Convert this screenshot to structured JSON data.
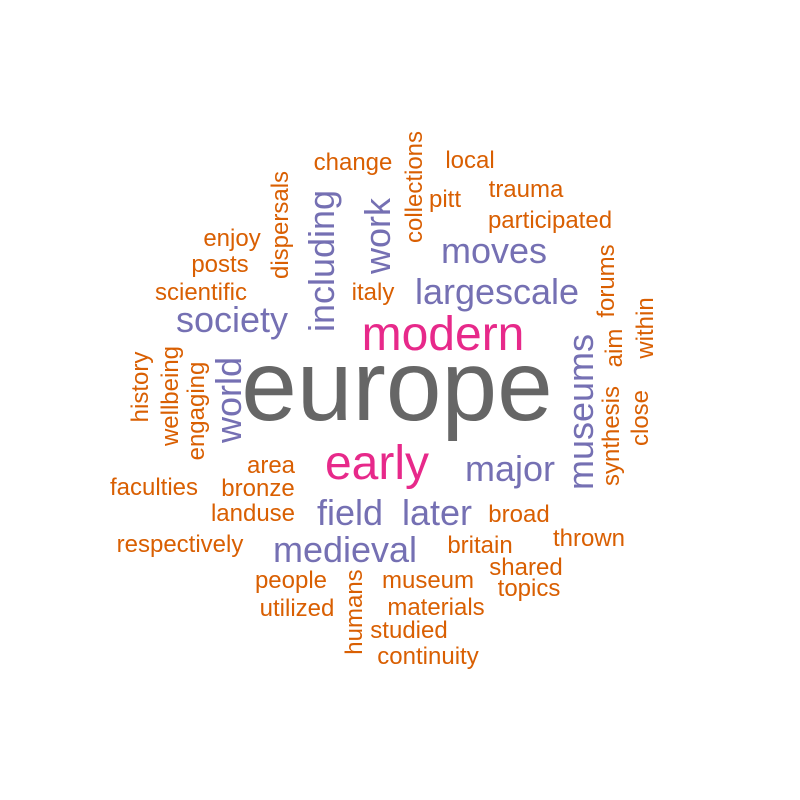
{
  "colors": {
    "tier1": "#666666",
    "tier2": "#e7298a",
    "tier3": "#7570b3",
    "tier4": "#d95f02"
  },
  "words": [
    {
      "text": "europe",
      "tier": "tier1",
      "vertical": false
    },
    {
      "text": "modern",
      "tier": "tier2",
      "vertical": false
    },
    {
      "text": "early",
      "tier": "tier2",
      "vertical": false
    },
    {
      "text": "moves",
      "tier": "tier3",
      "vertical": false
    },
    {
      "text": "largescale",
      "tier": "tier3",
      "vertical": false
    },
    {
      "text": "society",
      "tier": "tier3",
      "vertical": false
    },
    {
      "text": "including",
      "tier": "tier3",
      "vertical": true
    },
    {
      "text": "work",
      "tier": "tier3",
      "vertical": true
    },
    {
      "text": "world",
      "tier": "tier3",
      "vertical": true
    },
    {
      "text": "museums",
      "tier": "tier3",
      "vertical": true
    },
    {
      "text": "major",
      "tier": "tier3",
      "vertical": false
    },
    {
      "text": "field",
      "tier": "tier3",
      "vertical": false
    },
    {
      "text": "later",
      "tier": "tier3",
      "vertical": false
    },
    {
      "text": "medieval",
      "tier": "tier3",
      "vertical": false
    },
    {
      "text": "change",
      "tier": "tier4",
      "vertical": false
    },
    {
      "text": "local",
      "tier": "tier4",
      "vertical": false
    },
    {
      "text": "collections",
      "tier": "tier4",
      "vertical": true
    },
    {
      "text": "trauma",
      "tier": "tier4",
      "vertical": false
    },
    {
      "text": "pitt",
      "tier": "tier4",
      "vertical": false
    },
    {
      "text": "participated",
      "tier": "tier4",
      "vertical": false
    },
    {
      "text": "dispersals",
      "tier": "tier4",
      "vertical": true
    },
    {
      "text": "enjoy",
      "tier": "tier4",
      "vertical": false
    },
    {
      "text": "posts",
      "tier": "tier4",
      "vertical": false
    },
    {
      "text": "scientific",
      "tier": "tier4",
      "vertical": false
    },
    {
      "text": "italy",
      "tier": "tier4",
      "vertical": false
    },
    {
      "text": "forums",
      "tier": "tier4",
      "vertical": true
    },
    {
      "text": "within",
      "tier": "tier4",
      "vertical": true
    },
    {
      "text": "aim",
      "tier": "tier4",
      "vertical": true
    },
    {
      "text": "history",
      "tier": "tier4",
      "vertical": true
    },
    {
      "text": "wellbeing",
      "tier": "tier4",
      "vertical": true
    },
    {
      "text": "engaging",
      "tier": "tier4",
      "vertical": true
    },
    {
      "text": "synthesis",
      "tier": "tier4",
      "vertical": true
    },
    {
      "text": "close",
      "tier": "tier4",
      "vertical": true
    },
    {
      "text": "area",
      "tier": "tier4",
      "vertical": false
    },
    {
      "text": "faculties",
      "tier": "tier4",
      "vertical": false
    },
    {
      "text": "bronze",
      "tier": "tier4",
      "vertical": false
    },
    {
      "text": "landuse",
      "tier": "tier4",
      "vertical": false
    },
    {
      "text": "broad",
      "tier": "tier4",
      "vertical": false
    },
    {
      "text": "thrown",
      "tier": "tier4",
      "vertical": false
    },
    {
      "text": "respectively",
      "tier": "tier4",
      "vertical": false
    },
    {
      "text": "britain",
      "tier": "tier4",
      "vertical": false
    },
    {
      "text": "shared",
      "tier": "tier4",
      "vertical": false
    },
    {
      "text": "people",
      "tier": "tier4",
      "vertical": false
    },
    {
      "text": "humans",
      "tier": "tier4",
      "vertical": true
    },
    {
      "text": "museum",
      "tier": "tier4",
      "vertical": false
    },
    {
      "text": "topics",
      "tier": "tier4",
      "vertical": false
    },
    {
      "text": "utilized",
      "tier": "tier4",
      "vertical": false
    },
    {
      "text": "materials",
      "tier": "tier4",
      "vertical": false
    },
    {
      "text": "studied",
      "tier": "tier4",
      "vertical": false
    },
    {
      "text": "continuity",
      "tier": "tier4",
      "vertical": false
    }
  ]
}
